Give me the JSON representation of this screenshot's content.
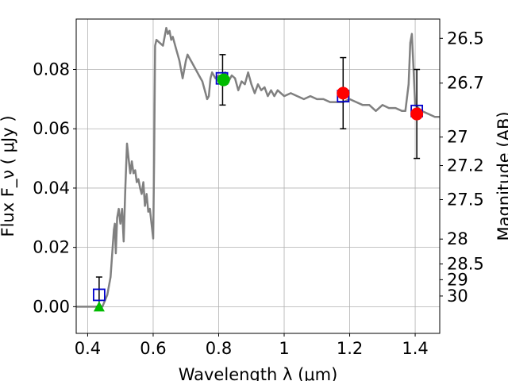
{
  "chart_data": {
    "type": "line",
    "xlabel": "Wavelength  λ (μm)",
    "ylabel": "Flux  F_ν  ( μJy )",
    "ylabel_right": "Magnitude (AB)",
    "xlim": [
      0.365,
      1.475
    ],
    "ylim": [
      -0.009,
      0.097
    ],
    "grid": true,
    "x_ticks": [
      0.4,
      0.6,
      0.8,
      1.0,
      1.2,
      1.4
    ],
    "x_tick_labels": [
      "0.4",
      "0.6",
      "0.8",
      "1",
      "1.2",
      "1.4"
    ],
    "y_ticks": [
      0.0,
      0.02,
      0.04,
      0.06,
      0.08
    ],
    "y_tick_labels": [
      "0.00",
      "0.02",
      "0.04",
      "0.06",
      "0.08"
    ],
    "right_ticks": [
      {
        "label": "26.5",
        "flux": 0.0905
      },
      {
        "label": "26.7",
        "flux": 0.0754
      },
      {
        "label": "27",
        "flux": 0.0572
      },
      {
        "label": "27.2",
        "flux": 0.0476
      },
      {
        "label": "27.5",
        "flux": 0.0361
      },
      {
        "label": "28",
        "flux": 0.0228
      },
      {
        "label": "28.5",
        "flux": 0.0144
      },
      {
        "label": "29",
        "flux": 0.0091
      },
      {
        "label": "30",
        "flux": 0.0036
      }
    ],
    "series": [
      {
        "style": "line",
        "color": "#808080",
        "x": [
          0.365,
          0.43,
          0.445,
          0.46,
          0.47,
          0.475,
          0.48,
          0.483,
          0.486,
          0.49,
          0.495,
          0.5,
          0.505,
          0.51,
          0.515,
          0.52,
          0.525,
          0.53,
          0.535,
          0.54,
          0.545,
          0.55,
          0.555,
          0.56,
          0.565,
          0.57,
          0.575,
          0.58,
          0.585,
          0.59,
          0.595,
          0.6,
          0.603,
          0.606,
          0.61,
          0.62,
          0.63,
          0.64,
          0.645,
          0.65,
          0.655,
          0.66,
          0.67,
          0.68,
          0.69,
          0.7,
          0.705,
          0.71,
          0.72,
          0.73,
          0.74,
          0.75,
          0.76,
          0.765,
          0.77,
          0.775,
          0.78,
          0.79,
          0.8,
          0.81,
          0.82,
          0.83,
          0.84,
          0.85,
          0.86,
          0.87,
          0.88,
          0.89,
          0.9,
          0.91,
          0.92,
          0.93,
          0.94,
          0.95,
          0.96,
          0.97,
          0.98,
          0.99,
          1.0,
          1.02,
          1.04,
          1.06,
          1.08,
          1.1,
          1.12,
          1.14,
          1.16,
          1.18,
          1.2,
          1.22,
          1.24,
          1.26,
          1.28,
          1.3,
          1.32,
          1.34,
          1.36,
          1.37,
          1.38,
          1.385,
          1.39,
          1.4,
          1.42,
          1.44,
          1.46,
          1.475
        ],
        "y": [
          0.0,
          0.0,
          0.0,
          0.004,
          0.01,
          0.018,
          0.026,
          0.028,
          0.018,
          0.03,
          0.033,
          0.028,
          0.033,
          0.022,
          0.04,
          0.055,
          0.05,
          0.045,
          0.049,
          0.045,
          0.046,
          0.042,
          0.043,
          0.04,
          0.038,
          0.042,
          0.034,
          0.038,
          0.032,
          0.033,
          0.028,
          0.023,
          0.05,
          0.088,
          0.09,
          0.089,
          0.088,
          0.094,
          0.092,
          0.093,
          0.09,
          0.091,
          0.087,
          0.083,
          0.077,
          0.083,
          0.085,
          0.084,
          0.082,
          0.08,
          0.078,
          0.076,
          0.072,
          0.07,
          0.071,
          0.077,
          0.079,
          0.077,
          0.078,
          0.077,
          0.079,
          0.076,
          0.078,
          0.077,
          0.073,
          0.076,
          0.075,
          0.079,
          0.075,
          0.072,
          0.075,
          0.073,
          0.074,
          0.071,
          0.073,
          0.071,
          0.073,
          0.072,
          0.071,
          0.072,
          0.071,
          0.07,
          0.071,
          0.07,
          0.07,
          0.069,
          0.069,
          0.069,
          0.07,
          0.069,
          0.068,
          0.068,
          0.066,
          0.068,
          0.067,
          0.067,
          0.066,
          0.066,
          0.075,
          0.089,
          0.092,
          0.068,
          0.066,
          0.065,
          0.064,
          0.064
        ]
      },
      {
        "style": "open-square",
        "color": "#0000cc",
        "x": [
          0.435,
          0.81,
          1.18,
          1.405
        ],
        "y": [
          0.004,
          0.077,
          0.071,
          0.066
        ]
      },
      {
        "style": "filled-circle",
        "color": "#00bb00",
        "x": [
          0.815
        ],
        "y": [
          0.0765
        ]
      },
      {
        "style": "filled-circle",
        "color": "#ff0000",
        "x": [
          1.18,
          1.405
        ],
        "y": [
          0.072,
          0.065
        ]
      },
      {
        "style": "filled-triangle",
        "color": "#00bb00",
        "x": [
          0.435
        ],
        "y": [
          0.0
        ]
      }
    ],
    "errorbars": [
      {
        "x": 0.435,
        "y_low": 0.0,
        "y_high": 0.01
      },
      {
        "x": 0.812,
        "y_low": 0.068,
        "y_high": 0.085
      },
      {
        "x": 1.18,
        "y_low": 0.06,
        "y_high": 0.084
      },
      {
        "x": 1.405,
        "y_low": 0.05,
        "y_high": 0.08
      }
    ]
  }
}
